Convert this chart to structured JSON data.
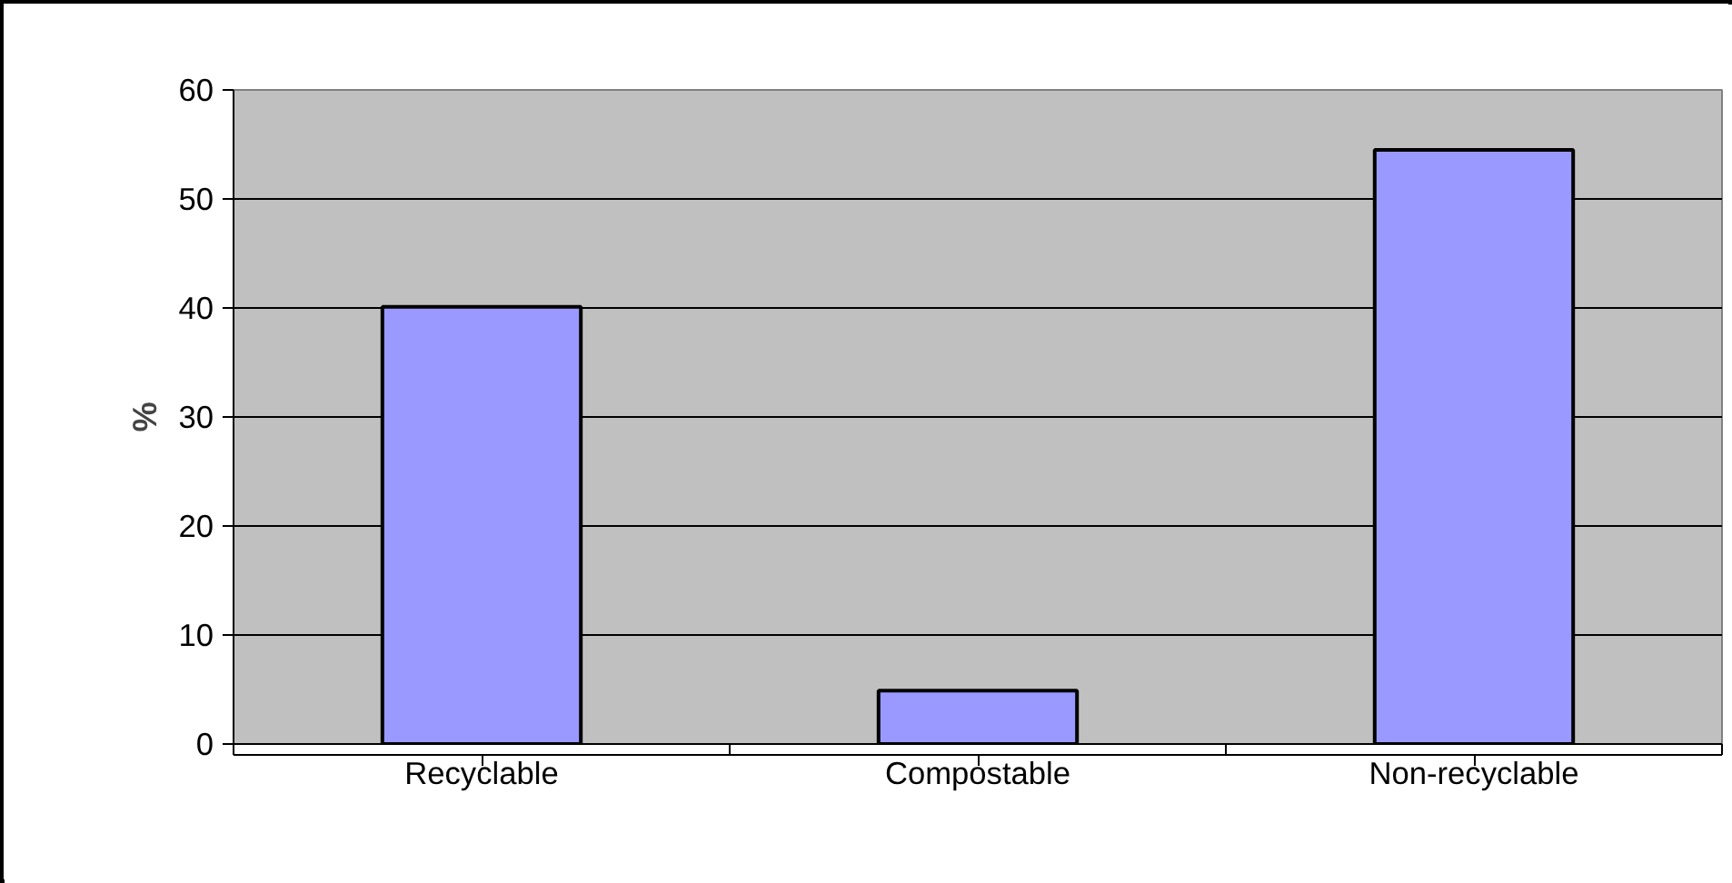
{
  "chart_data": {
    "type": "bar",
    "ylabel": "%",
    "categories": [
      "Recyclable",
      "Compostable",
      "Non-recyclable"
    ],
    "values": [
      40.1,
      4.9,
      54.5
    ],
    "color": "#9999ff",
    "ylim": [
      0,
      60
    ],
    "yticks": [
      0,
      10,
      20,
      30,
      40,
      50,
      60
    ],
    "grid": "y"
  }
}
